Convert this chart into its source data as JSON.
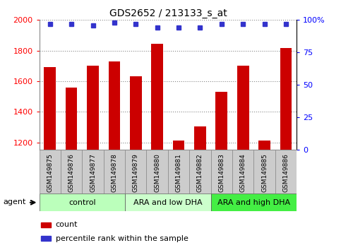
{
  "title": "GDS2652 / 213133_s_at",
  "samples": [
    "GSM149875",
    "GSM149876",
    "GSM149877",
    "GSM149878",
    "GSM149879",
    "GSM149880",
    "GSM149881",
    "GSM149882",
    "GSM149883",
    "GSM149884",
    "GSM149885",
    "GSM149886"
  ],
  "counts": [
    1690,
    1560,
    1700,
    1730,
    1630,
    1845,
    1210,
    1305,
    1530,
    1700,
    1210,
    1815
  ],
  "percentiles": [
    97,
    97,
    96,
    98,
    97,
    94,
    94,
    94,
    97,
    97,
    97,
    97
  ],
  "bar_color": "#cc0000",
  "dot_color": "#3333cc",
  "ylim_left": [
    1150,
    2000
  ],
  "ylim_right": [
    0,
    100
  ],
  "yticks_left": [
    1200,
    1400,
    1600,
    1800,
    2000
  ],
  "yticks_right": [
    0,
    25,
    50,
    75,
    100
  ],
  "groups": [
    {
      "label": "control",
      "start": 0,
      "end": 4,
      "color": "#bbffbb"
    },
    {
      "label": "ARA and low DHA",
      "start": 4,
      "end": 8,
      "color": "#ccffcc"
    },
    {
      "label": "ARA and high DHA",
      "start": 8,
      "end": 12,
      "color": "#44ee44"
    }
  ],
  "agent_label": "agent",
  "legend_count_label": "count",
  "legend_pct_label": "percentile rank within the sample",
  "bar_width": 0.55,
  "grid_color": "#888888",
  "tick_bg_color": "#cccccc",
  "plot_bg": "#ffffff"
}
